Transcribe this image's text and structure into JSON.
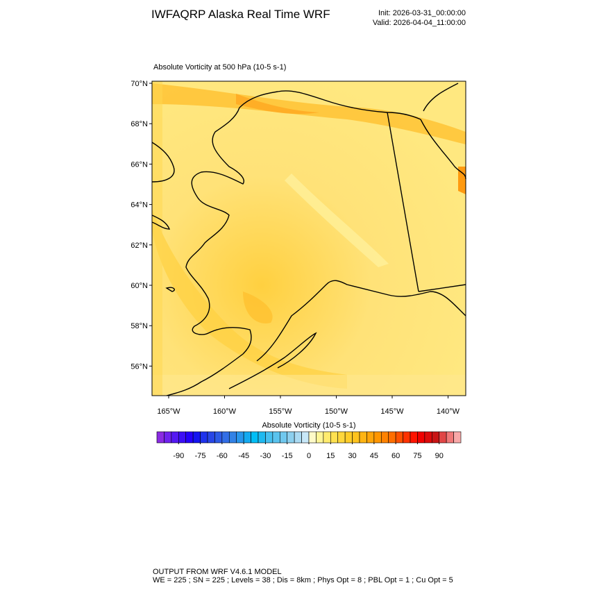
{
  "chart_data": {
    "type": "map",
    "title": "IWFAQRP Alaska Real Time WRF",
    "init": "Init: 2026-03-31_00:00:00",
    "valid": "Valid: 2026-04-04_11:00:00",
    "subtitle": "Absolute Vorticity at 500 hPa   (10-5 s-1)",
    "yticks": [
      {
        "value": 70,
        "label": "70°N"
      },
      {
        "value": 68,
        "label": "68°N"
      },
      {
        "value": 66,
        "label": "66°N"
      },
      {
        "value": 64,
        "label": "64°N"
      },
      {
        "value": 62,
        "label": "62°N"
      },
      {
        "value": 60,
        "label": "60°N"
      },
      {
        "value": 58,
        "label": "58°N"
      },
      {
        "value": 56,
        "label": "56°N"
      }
    ],
    "xticks": [
      {
        "value": -165,
        "label": "165°W"
      },
      {
        "value": -160,
        "label": "160°W"
      },
      {
        "value": -155,
        "label": "155°W"
      },
      {
        "value": -150,
        "label": "150°W"
      },
      {
        "value": -145,
        "label": "145°W"
      },
      {
        "value": -140,
        "label": "140°W"
      }
    ],
    "colorbar": {
      "label": "Absolute Vorticity  (10-5 s-1)",
      "lim": [
        -105,
        105
      ],
      "ticks": [
        -90,
        -75,
        -60,
        -45,
        -30,
        -15,
        0,
        15,
        30,
        45,
        60,
        75,
        90
      ],
      "colors": [
        "#8a2be2",
        "#6f22ee",
        "#5418f2",
        "#3c0ff5",
        "#2400fa",
        "#1414f0",
        "#1e32ec",
        "#2846e6",
        "#2d5ae6",
        "#326ee6",
        "#3282e6",
        "#2896ec",
        "#14aaf0",
        "#00bef5",
        "#1eb9f0",
        "#46c0f0",
        "#5ac3ee",
        "#70c8ee",
        "#8ccfee",
        "#aadaf2",
        "#c8e8f8",
        "#fffac8",
        "#fff596",
        "#ffeb6e",
        "#ffe150",
        "#ffd73c",
        "#ffcd28",
        "#ffc31e",
        "#ffb414",
        "#ffa50a",
        "#ff9600",
        "#ff8200",
        "#ff6e00",
        "#ff5000",
        "#ff3200",
        "#ff1400",
        "#f00000",
        "#dc0a0a",
        "#c81414",
        "#e04646",
        "#f07878",
        "#f8a8a8"
      ]
    },
    "footer": [
      "OUTPUT FROM WRF V4.6.1 MODEL",
      "WE = 225 ; SN = 225 ; Levels = 38 ; Dis = 8km ; Phys Opt = 8 ; PBL Opt = 1 ; Cu Opt = 5"
    ]
  }
}
